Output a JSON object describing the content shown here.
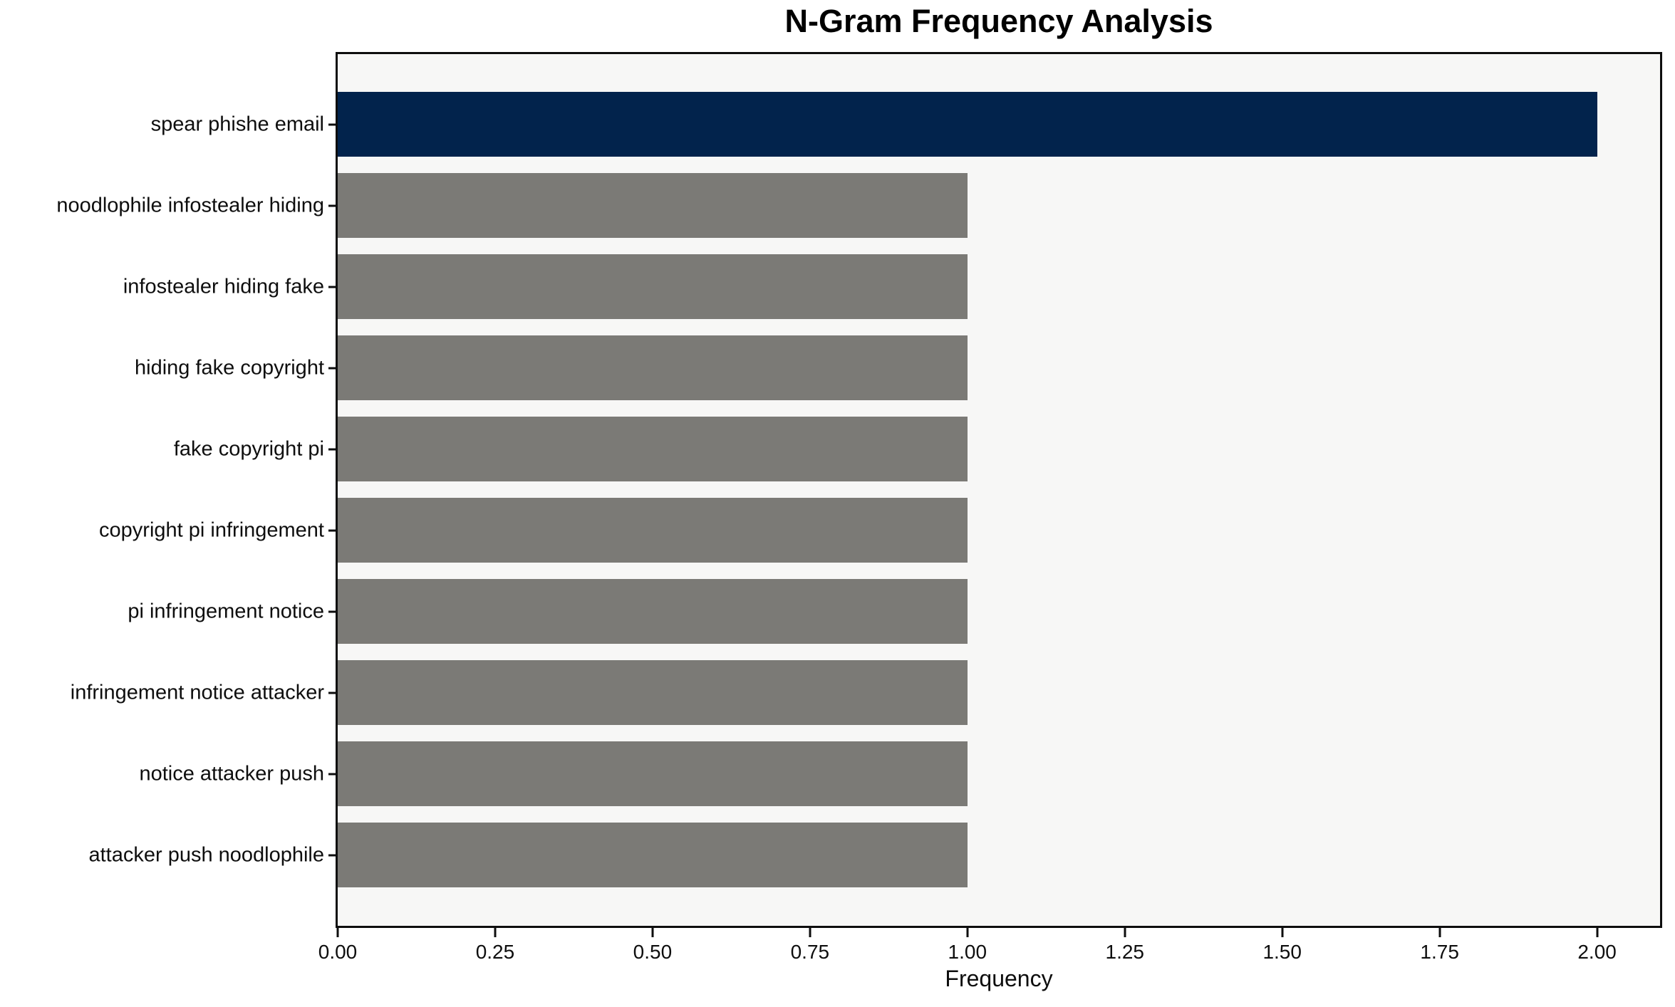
{
  "chart_data": {
    "type": "bar",
    "orientation": "horizontal",
    "title": "N-Gram Frequency Analysis",
    "xlabel": "Frequency",
    "ylabel": "",
    "categories": [
      "spear phishe email",
      "noodlophile infostealer hiding",
      "infostealer hiding fake",
      "hiding fake copyright",
      "fake copyright pi",
      "copyright pi infringement",
      "pi infringement notice",
      "infringement notice attacker",
      "notice attacker push",
      "attacker push noodlophile"
    ],
    "values": [
      2,
      1,
      1,
      1,
      1,
      1,
      1,
      1,
      1,
      1
    ],
    "bar_colors": [
      "#02234C",
      "#7B7A76",
      "#7B7A76",
      "#7B7A76",
      "#7B7A76",
      "#7B7A76",
      "#7B7A76",
      "#7B7A76",
      "#7B7A76",
      "#7B7A76"
    ],
    "xlim": [
      0,
      2.1
    ],
    "xticks": [
      "0.00",
      "0.25",
      "0.50",
      "0.75",
      "1.00",
      "1.25",
      "1.50",
      "1.75",
      "2.00"
    ],
    "grid": "off",
    "legend": "none"
  },
  "colors": {
    "highlight_bar": "#02234C",
    "default_bar": "#7B7A76",
    "plot_background": "#F7F7F6",
    "figure_background": "#FFFFFF",
    "axis": "#0E0E0E"
  }
}
